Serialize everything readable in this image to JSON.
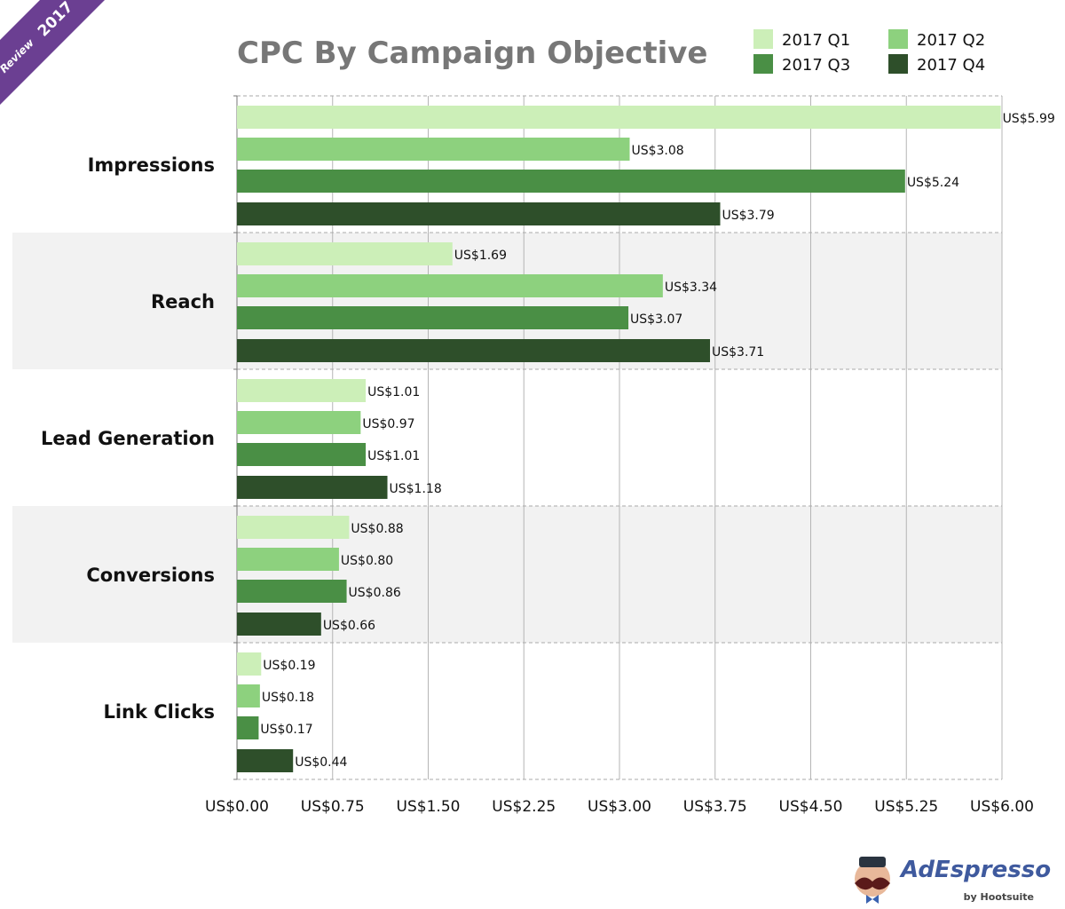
{
  "ribbon": {
    "year": "2017",
    "word": "Review",
    "color": "#6b3f92"
  },
  "logo": {
    "brand": "AdEspresso",
    "sub": "by Hootsuite"
  },
  "chart_data": {
    "type": "bar",
    "orientation": "horizontal",
    "title": "CPC By Campaign Objective",
    "categories": [
      "Impressions",
      "Reach",
      "Lead Generation",
      "Conversions",
      "Link Clicks"
    ],
    "series": [
      {
        "name": "2017 Q1",
        "color": "#ccefb8",
        "values": [
          5.99,
          1.69,
          1.01,
          0.88,
          0.19
        ]
      },
      {
        "name": "2017 Q2",
        "color": "#8dd17e",
        "values": [
          3.08,
          3.34,
          0.97,
          0.8,
          0.18
        ]
      },
      {
        "name": "2017 Q3",
        "color": "#4a8f45",
        "values": [
          5.24,
          3.07,
          1.01,
          0.86,
          0.17
        ]
      },
      {
        "name": "2017 Q4",
        "color": "#2e4f2a",
        "values": [
          3.79,
          3.71,
          1.18,
          0.66,
          0.44
        ]
      }
    ],
    "data_labels": [
      [
        "US$5.99",
        "US$1.69",
        "US$1.01",
        "US$0.88",
        "US$0.19"
      ],
      [
        "US$3.08",
        "US$3.34",
        "US$0.97",
        "US$0.80",
        "US$0.18"
      ],
      [
        "US$5.24",
        "US$3.07",
        "US$1.01",
        "US$0.86",
        "US$0.17"
      ],
      [
        "US$3.79",
        "US$3.71",
        "US$1.18",
        "US$0.66",
        "US$0.44"
      ]
    ],
    "xticks": [
      0,
      0.75,
      1.5,
      2.25,
      3,
      3.75,
      4.5,
      5.25,
      6
    ],
    "xtick_labels": [
      "US$0.00",
      "US$0.75",
      "US$1.50",
      "US$2.25",
      "US$3.00",
      "US$3.75",
      "US$4.50",
      "US$5.25",
      "US$6.00"
    ],
    "xlim": [
      0,
      6
    ],
    "xlabel": "",
    "ylabel": "",
    "grid": true,
    "legend_position": "top-right"
  }
}
